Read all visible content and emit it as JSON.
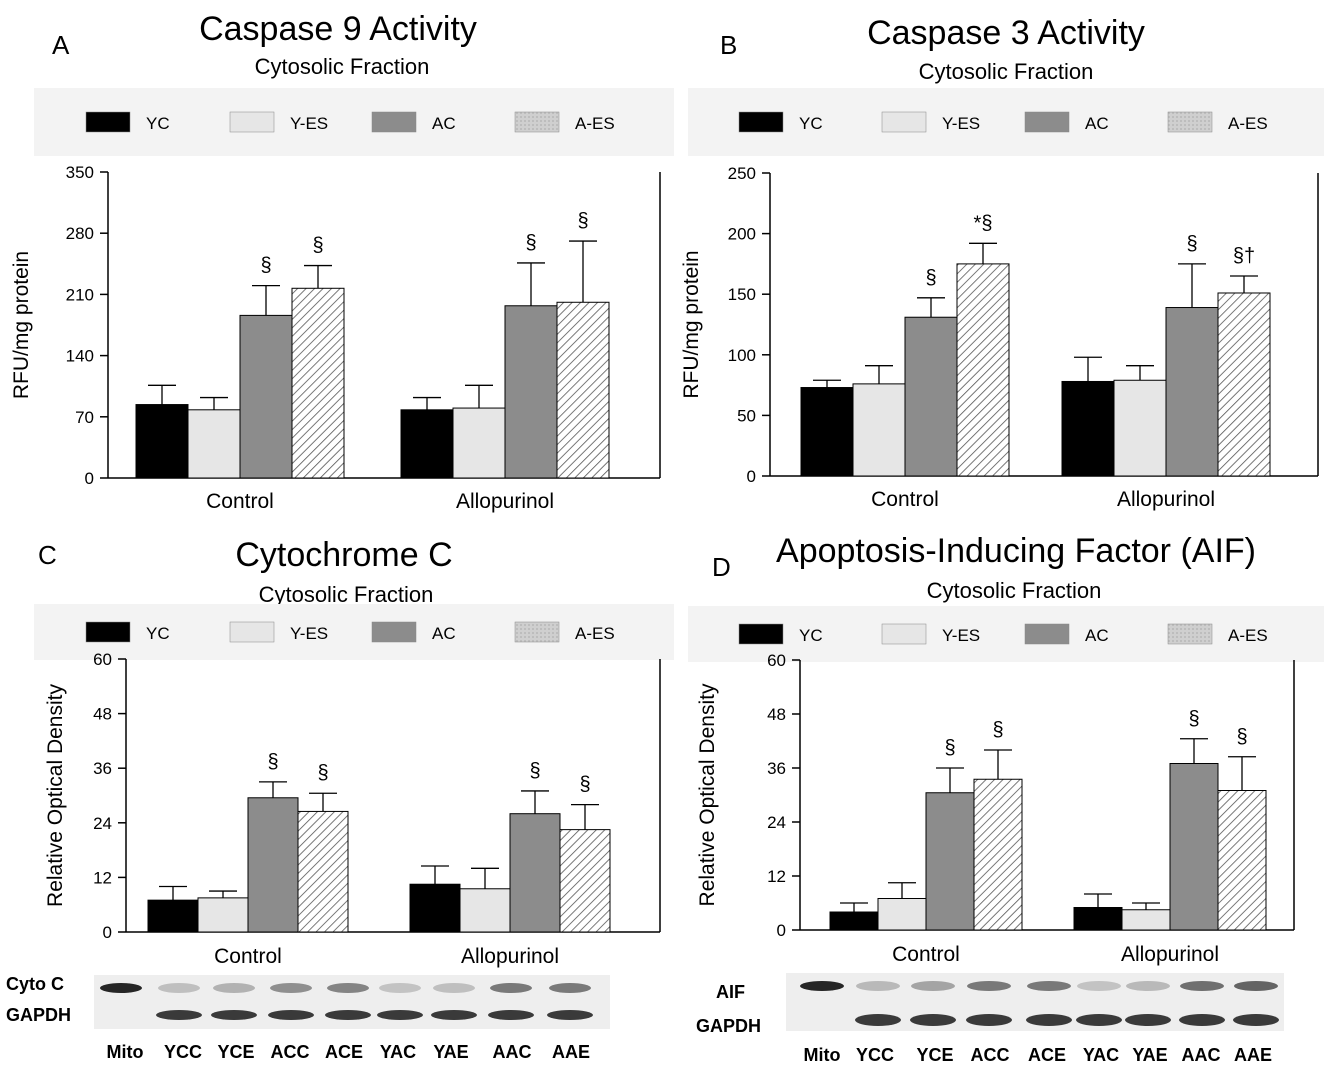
{
  "legend": [
    {
      "name": "YC",
      "fill": "#000000"
    },
    {
      "name": "Y-ES",
      "fill": "#e6e6e6"
    },
    {
      "name": "AC",
      "fill": "#8c8c8c"
    },
    {
      "name": "A-ES",
      "fill": "hatch"
    }
  ],
  "colors": {
    "legend_bg": "#f3f3f3",
    "blot_bg": "#ececec",
    "band": "#1a1a1a"
  },
  "chart_data": [
    {
      "panel": "A",
      "type": "bar",
      "title": "Caspase 9 Activity",
      "subtitle": "Cytosolic Fraction",
      "ylabel": "RFU/mg protein",
      "ylim": [
        0,
        350
      ],
      "yticks": [
        0,
        70,
        140,
        210,
        280,
        350
      ],
      "categories": [
        "Control",
        "Allopurinol"
      ],
      "series": [
        {
          "name": "YC",
          "values": [
            84,
            78
          ],
          "errors": [
            22,
            14
          ],
          "marks": [
            "",
            ""
          ]
        },
        {
          "name": "Y-ES",
          "values": [
            78,
            80
          ],
          "errors": [
            14,
            26
          ],
          "marks": [
            "",
            ""
          ]
        },
        {
          "name": "AC",
          "values": [
            186,
            197
          ],
          "errors": [
            34,
            49
          ],
          "marks": [
            "§",
            "§"
          ]
        },
        {
          "name": "A-ES",
          "values": [
            217,
            201
          ],
          "errors": [
            26,
            70
          ],
          "marks": [
            "§",
            "§"
          ]
        }
      ]
    },
    {
      "panel": "B",
      "type": "bar",
      "title": "Caspase 3 Activity",
      "subtitle": "Cytosolic Fraction",
      "ylabel": "RFU/mg protein",
      "ylim": [
        0,
        250
      ],
      "yticks": [
        0,
        50,
        100,
        150,
        200,
        250
      ],
      "categories": [
        "Control",
        "Allopurinol"
      ],
      "series": [
        {
          "name": "YC",
          "values": [
            73,
            78
          ],
          "errors": [
            6,
            20
          ],
          "marks": [
            "",
            ""
          ]
        },
        {
          "name": "Y-ES",
          "values": [
            76,
            79
          ],
          "errors": [
            15,
            12
          ],
          "marks": [
            "",
            ""
          ]
        },
        {
          "name": "AC",
          "values": [
            131,
            139
          ],
          "errors": [
            16,
            36
          ],
          "marks": [
            "§",
            "§"
          ]
        },
        {
          "name": "A-ES",
          "values": [
            175,
            151
          ],
          "errors": [
            17,
            14
          ],
          "marks": [
            "*§",
            "§†"
          ]
        }
      ]
    },
    {
      "panel": "C",
      "type": "bar",
      "title": "Cytochrome C",
      "subtitle": "Cytosolic Fraction",
      "ylabel": "Relative Optical Density",
      "ylim": [
        0,
        60
      ],
      "yticks": [
        0,
        12,
        24,
        36,
        48,
        60
      ],
      "categories": [
        "Control",
        "Allopurinol"
      ],
      "series": [
        {
          "name": "YC",
          "values": [
            7,
            10.5
          ],
          "errors": [
            3,
            4
          ],
          "marks": [
            "",
            ""
          ]
        },
        {
          "name": "Y-ES",
          "values": [
            7.5,
            9.5
          ],
          "errors": [
            1.5,
            4.5
          ],
          "marks": [
            "",
            ""
          ]
        },
        {
          "name": "AC",
          "values": [
            29.5,
            26
          ],
          "errors": [
            3.5,
            5
          ],
          "marks": [
            "§",
            "§"
          ]
        },
        {
          "name": "A-ES",
          "values": [
            26.5,
            22.5
          ],
          "errors": [
            4,
            5.5
          ],
          "marks": [
            "§",
            "§"
          ]
        }
      ],
      "blot": {
        "rows": [
          "Cyto C",
          "GAPDH"
        ],
        "lanes": [
          "Mito",
          "YCC",
          "YCE",
          "ACC",
          "ACE",
          "YAC",
          "YAE",
          "AAC",
          "AAE"
        ]
      }
    },
    {
      "panel": "D",
      "type": "bar",
      "title": "Apoptosis-Inducing Factor (AIF)",
      "subtitle": "Cytosolic Fraction",
      "ylabel": "Relative Optical Density",
      "ylim": [
        0,
        60
      ],
      "yticks": [
        0,
        12,
        24,
        36,
        48,
        60
      ],
      "categories": [
        "Control",
        "Allopurinol"
      ],
      "series": [
        {
          "name": "YC",
          "values": [
            4,
            5
          ],
          "errors": [
            2,
            3
          ],
          "marks": [
            "",
            ""
          ]
        },
        {
          "name": "Y-ES",
          "values": [
            7,
            4.5
          ],
          "errors": [
            3.5,
            1.5
          ],
          "marks": [
            "",
            ""
          ]
        },
        {
          "name": "AC",
          "values": [
            30.5,
            37
          ],
          "errors": [
            5.5,
            5.5
          ],
          "marks": [
            "§",
            "§"
          ]
        },
        {
          "name": "A-ES",
          "values": [
            33.5,
            31
          ],
          "errors": [
            6.5,
            7.5
          ],
          "marks": [
            "§",
            "§"
          ]
        }
      ],
      "blot": {
        "rows": [
          "AIF",
          "GAPDH"
        ],
        "lanes": [
          "Mito",
          "YCC",
          "YCE",
          "ACC",
          "ACE",
          "YAC",
          "YAE",
          "AAC",
          "AAE"
        ]
      }
    }
  ]
}
